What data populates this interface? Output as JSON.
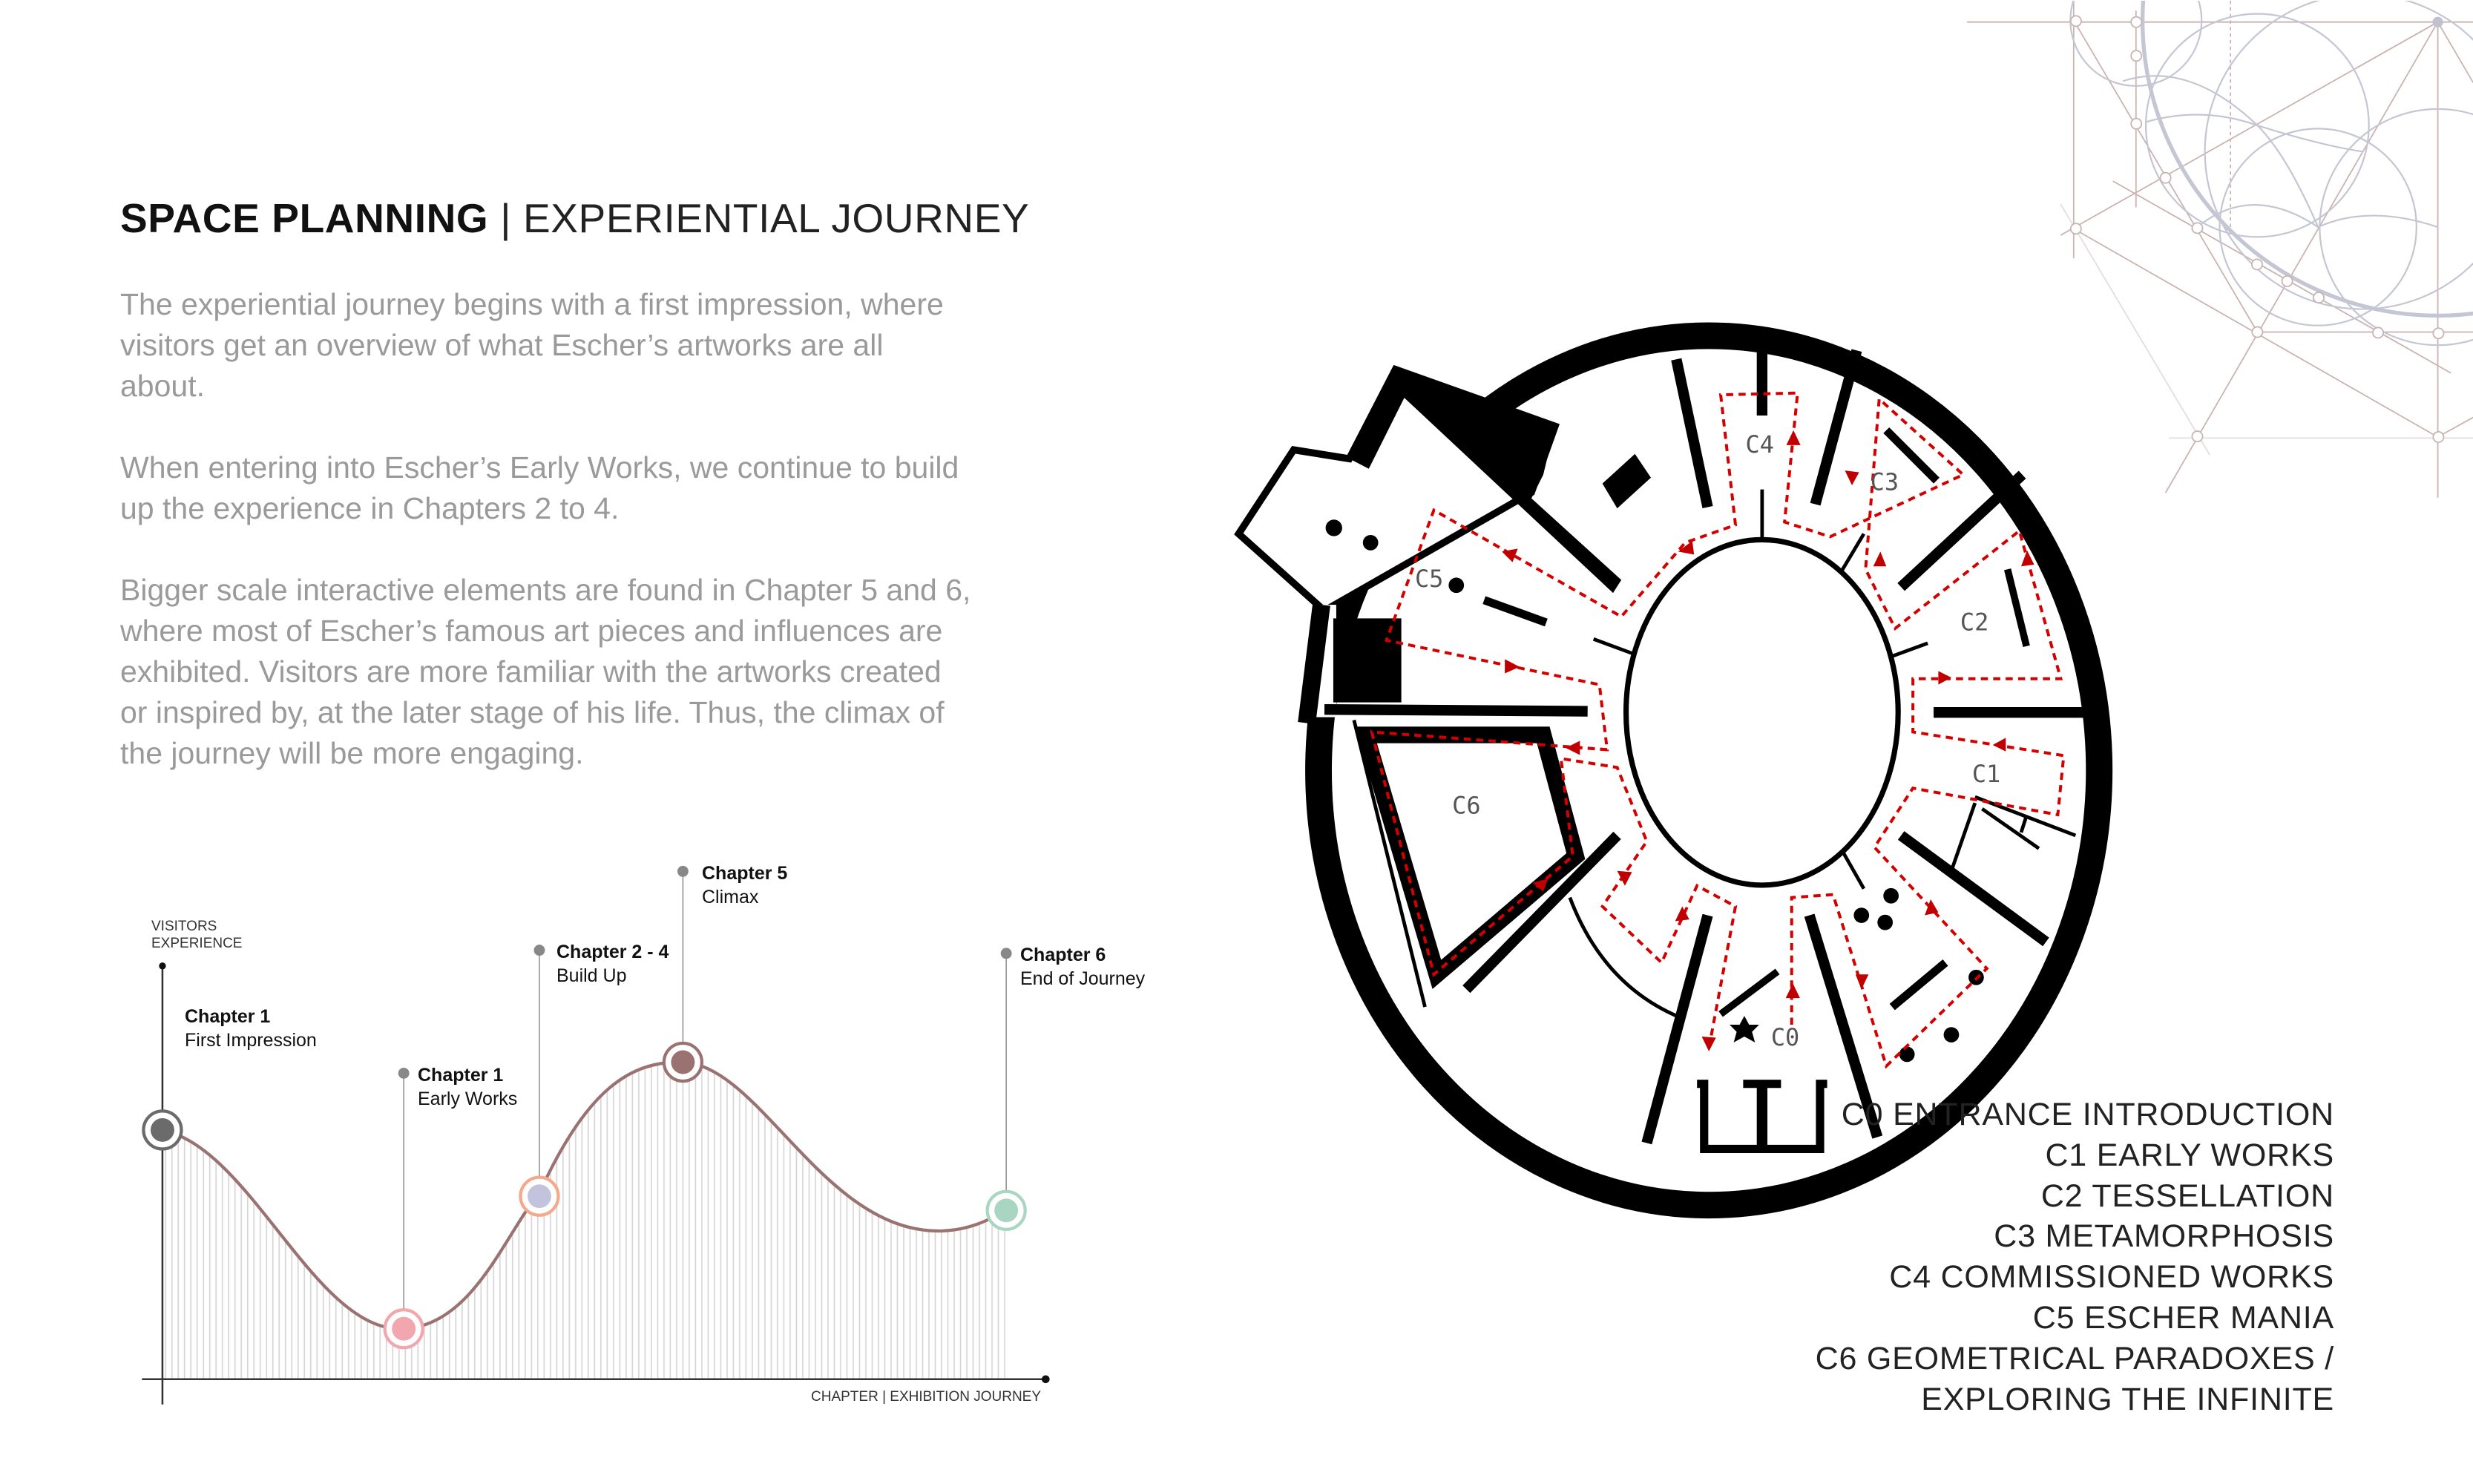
{
  "title": {
    "bold": "SPACE PLANNING",
    "separator": "|",
    "rest": "EXPERIENTIAL JOURNEY"
  },
  "intro": [
    "The experiential journey begins with a first impression, where visitors get an overview of what Escher’s artworks are all about.",
    "When entering into Escher’s Early Works, we continue to build up the experience in Chapters 2 to 4.",
    "Bigger scale interactive elements are found in Chapter 5 and 6, where most of Escher’s famous art pieces and influences are exhibited. Visitors are more familiar with the artworks created or inspired by, at the later stage of his life. Thus, the climax of the journey will be more engaging."
  ],
  "journey_diagram": {
    "y_axis_label_1": "VISITORS",
    "y_axis_label_2": "EXPERIENCE",
    "x_axis_label": "CHAPTER | EXHIBITION JOURNEY",
    "milestones": [
      {
        "chapter": "Chapter 1",
        "stage": "First Impression",
        "fill": "#6b6b6b",
        "ring": "#6b6b6b"
      },
      {
        "chapter": "Chapter 1",
        "stage": "Early Works",
        "fill": "#f2a6ae",
        "ring": "#f2a6ae"
      },
      {
        "chapter": "Chapter 2 - 4",
        "stage": "Build Up",
        "fill": "#c3c3de",
        "ring": "#f4a98c"
      },
      {
        "chapter": "Chapter 5",
        "stage": "Climax",
        "fill": "#9b7272",
        "ring": "#9b7272"
      },
      {
        "chapter": "Chapter 6",
        "stage": "End of Journey",
        "fill": "#a9d6c2",
        "ring": "#a9d6c2"
      }
    ],
    "curve_color": "#9b7272"
  },
  "floor_plan": {
    "zones": [
      "C0",
      "C1",
      "C2",
      "C3",
      "C4",
      "C5",
      "C6"
    ],
    "route_color": "#d40000"
  },
  "legend": [
    "C0 ENTRANCE INTRODUCTION",
    "C1 EARLY WORKS",
    "C2 TESSELLATION",
    "C3 METAMORPHOSIS",
    "C4 COMMISSIONED WORKS",
    "C5 ESCHER MANIA",
    "C6 GEOMETRICAL PARADOXES /",
    "EXPLORING THE INFINITE"
  ]
}
